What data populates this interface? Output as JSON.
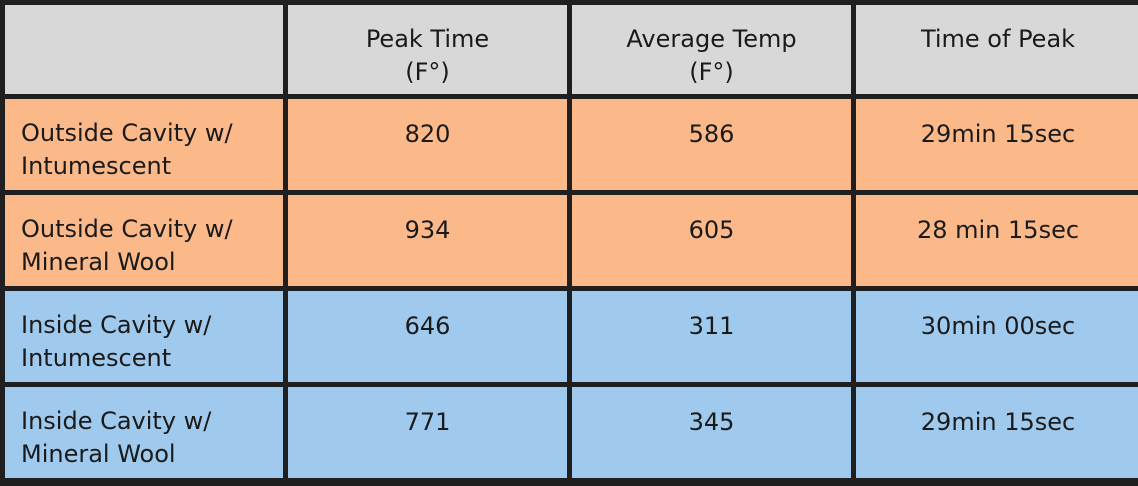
{
  "chart_data": {
    "type": "table",
    "columns": [
      {
        "line1": "",
        "line2": ""
      },
      {
        "line1": "Peak Time",
        "line2": "(F°)"
      },
      {
        "line1": "Average Temp",
        "line2": "(F°)"
      },
      {
        "line1": "Time of Peak",
        "line2": ""
      }
    ],
    "rows": [
      {
        "label_line1": "Outside Cavity w/",
        "label_line2": "Intumescent",
        "peak_time": "820",
        "average_temp": "586",
        "time_of_peak": "29min 15sec",
        "color": "#fbb98a"
      },
      {
        "label_line1": "Outside Cavity w/",
        "label_line2": "Mineral Wool",
        "peak_time": "934",
        "average_temp": "605",
        "time_of_peak": "28 min 15sec",
        "color": "#fbb98a"
      },
      {
        "label_line1": "Inside Cavity w/",
        "label_line2": "Intumescent",
        "peak_time": "646",
        "average_temp": "311",
        "time_of_peak": "30min 00sec",
        "color": "#9fcaed"
      },
      {
        "label_line1": "Inside Cavity w/",
        "label_line2": "Mineral Wool",
        "peak_time": "771",
        "average_temp": "345",
        "time_of_peak": "29min 15sec",
        "color": "#9fcaed"
      }
    ]
  },
  "colors": {
    "header_background": "#d8d8d8",
    "outside_cavity": "#fbb98a",
    "inside_cavity": "#9fcaed",
    "border": "#1f1f1f",
    "text": "#1a1a1a"
  }
}
